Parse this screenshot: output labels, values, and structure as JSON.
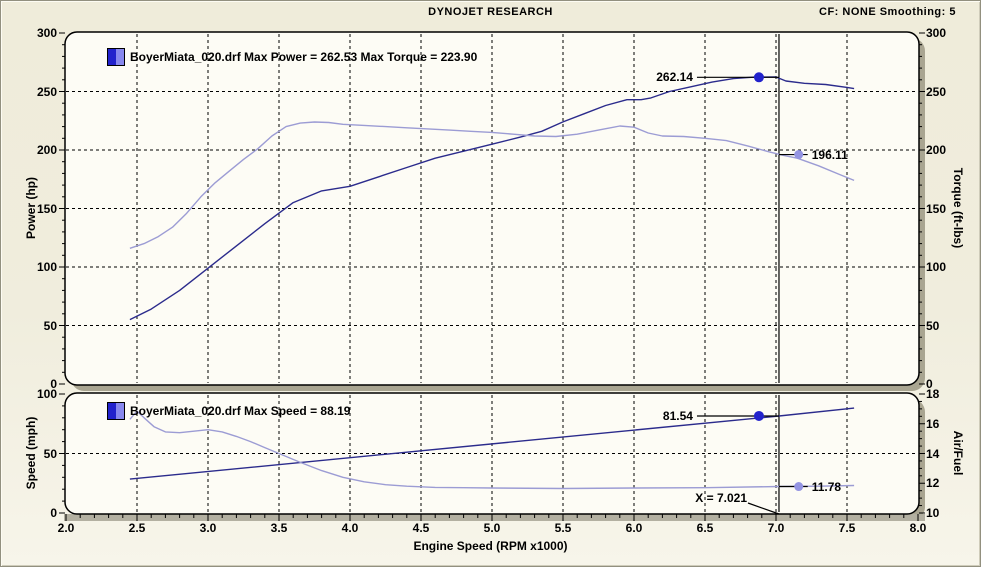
{
  "header": {
    "title": "DYNOJET RESEARCH",
    "right_text": "CF: NONE  Smoothing: 5"
  },
  "cursor": {
    "x": 7.021,
    "label": "X = 7.021"
  },
  "xaxis": {
    "label": "Engine Speed (RPM x1000)",
    "min": 2.0,
    "max": 8.0,
    "major_step": 0.5,
    "minor_step": 0.1,
    "tick_labels": [
      "2.0",
      "2.5",
      "3.0",
      "3.5",
      "4.0",
      "4.5",
      "5.0",
      "5.5",
      "6.0",
      "6.5",
      "7.0",
      "7.5",
      "8.0"
    ]
  },
  "colors": {
    "background": "#efecda",
    "panel_bg": "#fdfcf5",
    "shadow": "#a9a591",
    "ruler_band": "#b3b0a1",
    "grid": "#000000",
    "primary_line": "#2b2b8c",
    "secondary_line": "#9c9cd4",
    "swatch_left": "#2222cc",
    "swatch_right": "#8888ee",
    "dot_primary": "#2222cc",
    "dot_secondary": "#9494e2"
  },
  "chart_data": [
    {
      "type": "line",
      "title": "",
      "legend": "BoyerMiata_020.drf Max Power = 262.53 Max Torque = 223.90",
      "max_power": "262.53",
      "max_torque": "223.90",
      "xlabel": "Engine Speed (RPM x1000)",
      "x_range": [
        2.0,
        8.0
      ],
      "grid": true,
      "h_gridlines": [
        50,
        100,
        150,
        200,
        250
      ],
      "left_axis": {
        "label": "Power (hp)",
        "min": 0,
        "max": 300,
        "major": 50,
        "minor": 10,
        "ticks": [
          0,
          50,
          100,
          150,
          200,
          250,
          300
        ]
      },
      "right_axis": {
        "label": "Torque (ft-lbs)",
        "min": 0,
        "max": 300,
        "major": 50,
        "minor": 10,
        "ticks": [
          0,
          50,
          100,
          150,
          200,
          250,
          300
        ]
      },
      "series": [
        {
          "name": "Power (hp)",
          "axis": "left",
          "tone": "primary",
          "x": [
            2.45,
            2.6,
            2.8,
            3.0,
            3.2,
            3.4,
            3.6,
            3.8,
            4.0,
            4.2,
            4.4,
            4.6,
            4.8,
            5.0,
            5.2,
            5.35,
            5.5,
            5.65,
            5.8,
            5.95,
            6.05,
            6.12,
            6.25,
            6.4,
            6.55,
            6.7,
            6.85,
            7.0,
            7.07,
            7.2,
            7.35,
            7.5,
            7.55
          ],
          "values": [
            55,
            64,
            80,
            99,
            118,
            137,
            155,
            165,
            169,
            177,
            185,
            193,
            199,
            205,
            211,
            216,
            224,
            231,
            238,
            243,
            243,
            244.5,
            250,
            254,
            258,
            261,
            262.3,
            262.4,
            259,
            257,
            256,
            253.5,
            252.5
          ]
        },
        {
          "name": "Torque (ft-lbs)",
          "axis": "right",
          "tone": "secondary",
          "x": [
            2.45,
            2.55,
            2.65,
            2.75,
            2.85,
            2.95,
            3.05,
            3.15,
            3.25,
            3.35,
            3.45,
            3.55,
            3.65,
            3.75,
            3.85,
            3.95,
            4.1,
            4.25,
            4.4,
            4.55,
            4.7,
            4.85,
            5.0,
            5.15,
            5.3,
            5.45,
            5.6,
            5.75,
            5.9,
            6.0,
            6.1,
            6.2,
            6.35,
            6.5,
            6.65,
            6.8,
            6.95,
            7.05,
            7.15,
            7.3,
            7.45,
            7.55
          ],
          "values": [
            116,
            120,
            126,
            134,
            146,
            160,
            172,
            182,
            192,
            201,
            212,
            220,
            223,
            223.9,
            223.5,
            222,
            221,
            220,
            219,
            218,
            217,
            216,
            215,
            213.5,
            212,
            211.5,
            213.5,
            217,
            220.5,
            219.5,
            214.5,
            212,
            211.5,
            210,
            208,
            203.5,
            198.5,
            195.5,
            193,
            186.5,
            179,
            174
          ]
        }
      ],
      "annotations": [
        {
          "label": "262.14",
          "dot_x": 6.88,
          "value": 262.14,
          "axis": "left",
          "tone": "primary",
          "side": "left"
        },
        {
          "label": "196.11",
          "dot_x": 7.16,
          "value": 196.11,
          "axis": "right",
          "tone": "secondary",
          "side": "right"
        }
      ]
    },
    {
      "type": "line",
      "title": "",
      "legend": "BoyerMiata_020.drf Max Speed = 88.19",
      "max_speed": "88.19",
      "xlabel": "Engine Speed (RPM x1000)",
      "x_range": [
        2.0,
        8.0
      ],
      "grid": true,
      "h_gridlines": [
        50
      ],
      "left_axis": {
        "label": "Speed (mph)",
        "min": 0,
        "max": 100,
        "major": 50,
        "minor": 10,
        "ticks": [
          0,
          50,
          100
        ]
      },
      "right_axis": {
        "label": "Air/Fuel",
        "min": 10,
        "max": 18,
        "major": 2,
        "minor": 0.5,
        "ticks": [
          10,
          12,
          14,
          16,
          18
        ]
      },
      "series": [
        {
          "name": "Speed (mph)",
          "axis": "left",
          "tone": "primary",
          "x": [
            2.45,
            7.021,
            7.55
          ],
          "values": [
            28.5,
            81.54,
            88.19
          ]
        },
        {
          "name": "Air/Fuel",
          "axis": "right",
          "tone": "secondary",
          "x": [
            2.45,
            2.5,
            2.55,
            2.62,
            2.7,
            2.8,
            2.9,
            3.0,
            3.1,
            3.2,
            3.3,
            3.4,
            3.5,
            3.65,
            3.8,
            3.95,
            4.1,
            4.25,
            4.4,
            4.6,
            4.8,
            5.0,
            5.5,
            6.0,
            6.5,
            7.021,
            7.3,
            7.55
          ],
          "values": [
            16.3,
            16.85,
            16.4,
            15.8,
            15.45,
            15.4,
            15.5,
            15.6,
            15.45,
            15.15,
            14.8,
            14.4,
            14.0,
            13.4,
            12.85,
            12.4,
            12.1,
            11.9,
            11.8,
            11.72,
            11.7,
            11.68,
            11.65,
            11.68,
            11.7,
            11.78,
            11.8,
            11.85
          ]
        }
      ],
      "annotations": [
        {
          "label": "81.54",
          "dot_x": 6.88,
          "value": 81.54,
          "axis": "left",
          "tone": "primary",
          "side": "left"
        },
        {
          "label": "11.78",
          "dot_x": 7.16,
          "value": 11.78,
          "axis": "right",
          "tone": "secondary",
          "side": "right"
        }
      ]
    }
  ]
}
